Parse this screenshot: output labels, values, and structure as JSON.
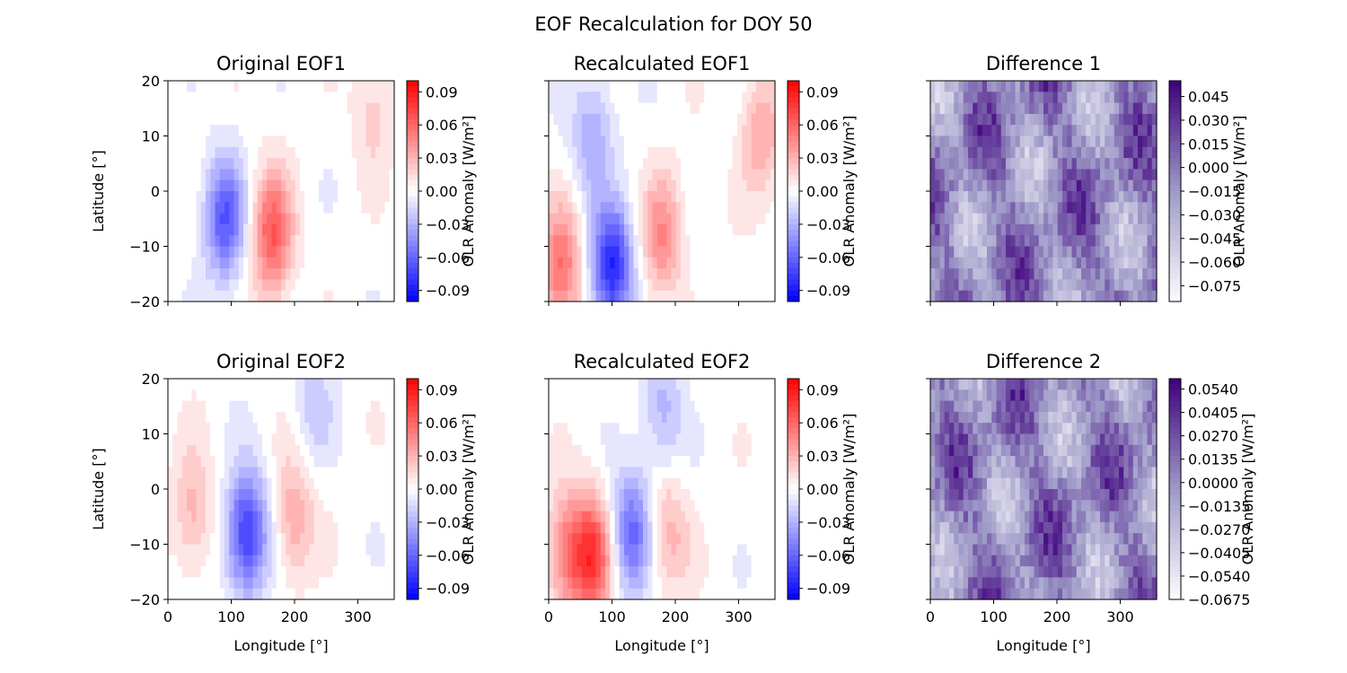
{
  "figure": {
    "title": "EOF Recalculation for DOY 50"
  },
  "colors": {
    "bwr_low": "#0000ff",
    "bwr_mid": "#ffffff",
    "bwr_high": "#ff0000",
    "purples_low": "#fcfbfd",
    "purples_high": "#3f007d",
    "axis": "#000000"
  },
  "chart_data": [
    {
      "type": "heatmap",
      "title": "Original EOF1",
      "xlabel": "",
      "ylabel": "Latitude [°]",
      "xlim": [
        0,
        357.5
      ],
      "ylim": [
        -20,
        20
      ],
      "xticks": [
        0,
        100,
        200,
        300
      ],
      "xtick_labels": [
        "",
        "",
        "",
        ""
      ],
      "yticks": [
        -20,
        -10,
        0,
        10,
        20
      ],
      "ytick_labels": [
        "−20",
        "−10",
        "0",
        "10",
        "20"
      ],
      "colormap": "bwr",
      "colorbar": {
        "label": "OLR Anomaly [W/m²]",
        "range": [
          -0.1,
          0.1
        ],
        "ticks": [
          -0.09,
          -0.06,
          -0.03,
          0.0,
          0.03,
          0.06,
          0.09
        ],
        "tick_labels": [
          "−0.09",
          "−0.06",
          "−0.03",
          "0.00",
          "0.03",
          "0.06",
          "0.09"
        ]
      },
      "features": [
        {
          "lon": 90,
          "lat": -5,
          "amplitude": -0.065
        },
        {
          "lon": 165,
          "lat": -8,
          "amplitude": 0.065
        },
        {
          "lon": 325,
          "lat": 15,
          "amplitude": 0.02
        }
      ]
    },
    {
      "type": "heatmap",
      "title": "Recalculated EOF1",
      "xlabel": "",
      "ylabel": "",
      "xlim": [
        0,
        357.5
      ],
      "ylim": [
        -20,
        20
      ],
      "xticks": [
        0,
        100,
        200,
        300
      ],
      "xtick_labels": [
        "",
        "",
        "",
        ""
      ],
      "yticks": [
        -20,
        -10,
        0,
        10,
        20
      ],
      "ytick_labels": [
        "",
        "",
        "",
        "",
        ""
      ],
      "colormap": "bwr",
      "colorbar": {
        "label": "OLR Anomaly [W/m²]",
        "range": [
          -0.1,
          0.1
        ],
        "ticks": [
          -0.09,
          -0.06,
          -0.03,
          0.0,
          0.03,
          0.06,
          0.09
        ],
        "tick_labels": [
          "−0.09",
          "−0.06",
          "−0.03",
          "0.00",
          "0.03",
          "0.06",
          "0.09"
        ]
      },
      "features": [
        {
          "lon": 100,
          "lat": -14,
          "amplitude": -0.085
        },
        {
          "lon": 70,
          "lat": 10,
          "amplitude": -0.035
        },
        {
          "lon": 180,
          "lat": -8,
          "amplitude": 0.045
        },
        {
          "lon": 20,
          "lat": -14,
          "amplitude": 0.055
        },
        {
          "lon": 335,
          "lat": 10,
          "amplitude": 0.035
        }
      ]
    },
    {
      "type": "heatmap",
      "title": "Difference 1",
      "xlabel": "",
      "ylabel": "",
      "xlim": [
        0,
        357.5
      ],
      "ylim": [
        -20,
        20
      ],
      "xticks": [
        0,
        100,
        200,
        300
      ],
      "xtick_labels": [
        "",
        "",
        "",
        ""
      ],
      "yticks": [
        -20,
        -10,
        0,
        10,
        20
      ],
      "ytick_labels": [
        "",
        "",
        "",
        "",
        ""
      ],
      "colormap": "Purples",
      "colorbar": {
        "label": "OLR Anomaly [W/m²]",
        "range": [
          -0.085,
          0.055
        ],
        "ticks": [
          -0.075,
          -0.06,
          -0.045,
          -0.03,
          -0.015,
          0.0,
          0.015,
          0.03,
          0.045
        ],
        "tick_labels": [
          "−0.075",
          "−0.060",
          "−0.045",
          "−0.030",
          "−0.015",
          "0.000",
          "0.015",
          "0.030",
          "0.045"
        ]
      }
    },
    {
      "type": "heatmap",
      "title": "Original EOF2",
      "xlabel": "Longitude [°]",
      "ylabel": "Latitude [°]",
      "xlim": [
        0,
        357.5
      ],
      "ylim": [
        -20,
        20
      ],
      "xticks": [
        0,
        100,
        200,
        300
      ],
      "xtick_labels": [
        "0",
        "100",
        "200",
        "300"
      ],
      "yticks": [
        -20,
        -10,
        0,
        10,
        20
      ],
      "ytick_labels": [
        "−20",
        "−10",
        "0",
        "10",
        "20"
      ],
      "colormap": "bwr",
      "colorbar": {
        "label": "OLR Anomaly [W/m²]",
        "range": [
          -0.1,
          0.1
        ],
        "ticks": [
          -0.09,
          -0.06,
          -0.03,
          0.0,
          0.03,
          0.06,
          0.09
        ],
        "tick_labels": [
          "−0.09",
          "−0.06",
          "−0.03",
          "0.00",
          "0.03",
          "0.06",
          "0.09"
        ]
      },
      "features": [
        {
          "lon": 125,
          "lat": -8,
          "amplitude": -0.08
        },
        {
          "lon": 40,
          "lat": -4,
          "amplitude": 0.03
        },
        {
          "lon": 200,
          "lat": -5,
          "amplitude": 0.035
        },
        {
          "lon": 230,
          "lat": 15,
          "amplitude": -0.02
        }
      ]
    },
    {
      "type": "heatmap",
      "title": "Recalculated EOF2",
      "xlabel": "Longitude [°]",
      "ylabel": "",
      "xlim": [
        0,
        357.5
      ],
      "ylim": [
        -20,
        20
      ],
      "xticks": [
        0,
        100,
        200,
        300
      ],
      "xtick_labels": [
        "0",
        "100",
        "200",
        "300"
      ],
      "yticks": [
        -20,
        -10,
        0,
        10,
        20
      ],
      "ytick_labels": [
        "",
        "",
        "",
        "",
        ""
      ],
      "colormap": "bwr",
      "colorbar": {
        "label": "OLR Anomaly [W/m²]",
        "range": [
          -0.1,
          0.1
        ],
        "ticks": [
          -0.09,
          -0.06,
          -0.03,
          0.0,
          0.03,
          0.06,
          0.09
        ],
        "tick_labels": [
          "−0.09",
          "−0.06",
          "−0.03",
          "0.00",
          "0.03",
          "0.06",
          "0.09"
        ]
      },
      "features": [
        {
          "lon": 70,
          "lat": -12,
          "amplitude": 0.07
        },
        {
          "lon": 130,
          "lat": -8,
          "amplitude": -0.06
        },
        {
          "lon": 30,
          "lat": -12,
          "amplitude": 0.05
        },
        {
          "lon": 190,
          "lat": -8,
          "amplitude": 0.03
        },
        {
          "lon": 180,
          "lat": 14,
          "amplitude": -0.03
        }
      ]
    },
    {
      "type": "heatmap",
      "title": "Difference 2",
      "xlabel": "Longitude [°]",
      "ylabel": "",
      "xlim": [
        0,
        357.5
      ],
      "ylim": [
        -20,
        20
      ],
      "xticks": [
        0,
        100,
        200,
        300
      ],
      "xtick_labels": [
        "0",
        "100",
        "200",
        "300"
      ],
      "yticks": [
        -20,
        -10,
        0,
        10,
        20
      ],
      "ytick_labels": [
        "",
        "",
        "",
        "",
        ""
      ],
      "colormap": "Purples",
      "colorbar": {
        "label": "OLR Anomaly [W/m²]",
        "range": [
          -0.0675,
          0.06
        ],
        "ticks": [
          -0.0675,
          -0.054,
          -0.0405,
          -0.027,
          -0.0135,
          0.0,
          0.0135,
          0.027,
          0.0405,
          0.054
        ],
        "tick_labels": [
          "−0.0675",
          "−0.0540",
          "−0.0405",
          "−0.0270",
          "−0.0135",
          "0.0000",
          "0.0135",
          "0.0270",
          "0.0405",
          "0.0540"
        ]
      }
    }
  ]
}
